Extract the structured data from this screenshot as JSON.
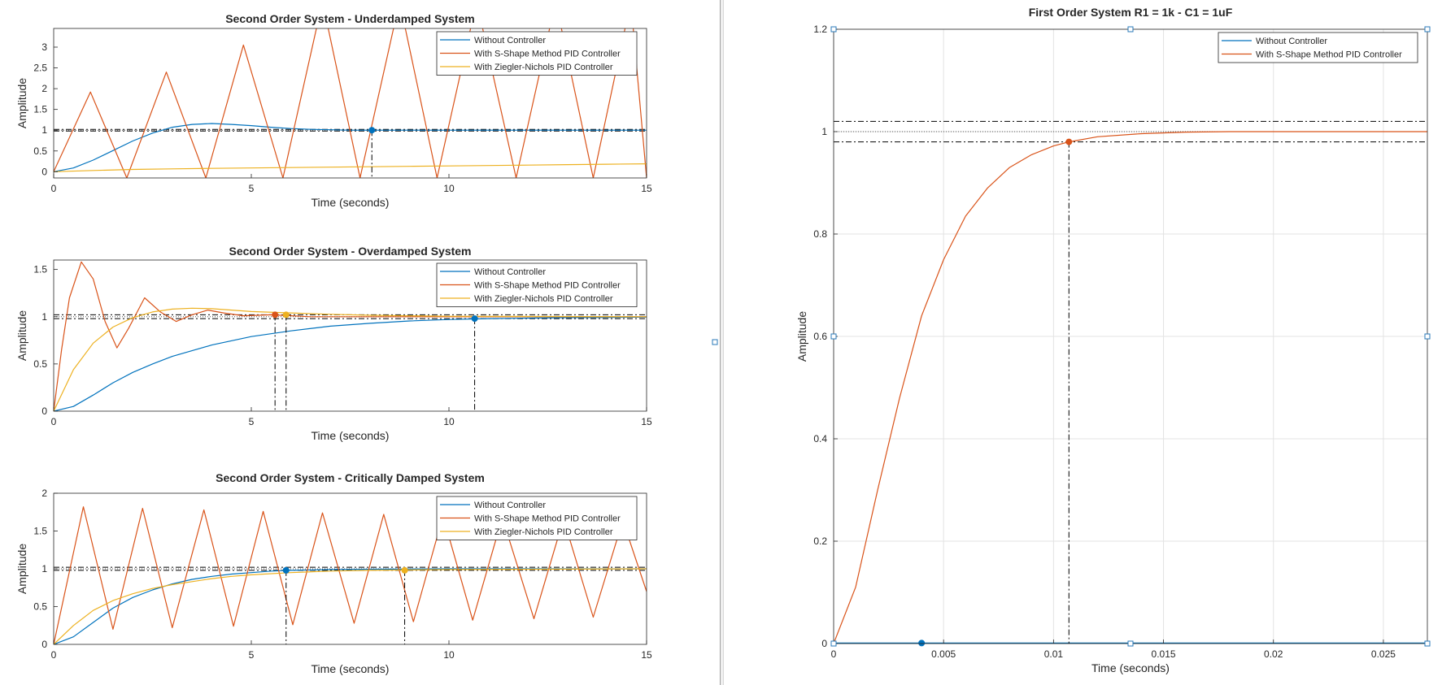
{
  "colors": {
    "without": "#0072BD",
    "s_shape": "#D95319",
    "zn": "#EDB120",
    "grid": "#e3e3e3",
    "axis": "#262626",
    "ref": "#000000",
    "handle": "#2a7ab8"
  },
  "chart_data": [
    {
      "id": "under",
      "type": "line",
      "title": "Second Order System - Underdamped System",
      "xlabel": "Time (seconds)",
      "ylabel": "Amplitude",
      "xlim": [
        0,
        15
      ],
      "ylim": [
        -0.15,
        3.45
      ],
      "xticks": [
        0,
        5,
        10,
        15
      ],
      "yticks": [
        0,
        0.5,
        1,
        1.5,
        2,
        2.5,
        3
      ],
      "ytick_labels": [
        "0",
        "0.5",
        "1",
        "1.5",
        "2",
        "2.5",
        "3"
      ],
      "grid": false,
      "legend_position": "top-right",
      "legend": [
        "Without Controller",
        "With S-Shape Method PID Controller",
        "With Ziegler-Nichols PID Controller"
      ],
      "series": [
        {
          "name": "Without Controller",
          "color_key": "without",
          "x": [
            0,
            0.5,
            1,
            1.5,
            2,
            2.5,
            3,
            3.5,
            4,
            4.5,
            5,
            5.5,
            6,
            6.5,
            7,
            7.5,
            8,
            9,
            10,
            12,
            15
          ],
          "y": [
            0,
            0.09,
            0.28,
            0.51,
            0.74,
            0.93,
            1.07,
            1.14,
            1.16,
            1.14,
            1.11,
            1.07,
            1.04,
            1.02,
            1.01,
            1.0,
            1.0,
            1.0,
            1.0,
            1.0,
            1.0
          ]
        },
        {
          "name": "With S-Shape Method PID Controller",
          "color_key": "s_shape",
          "x": [
            0,
            0.93,
            1.85,
            2.85,
            3.85,
            4.8,
            5.8,
            6.8,
            7.75,
            8.75,
            9.7,
            10.7,
            11.7,
            12.7,
            13.65,
            14.6,
            15
          ],
          "y": [
            0,
            1.92,
            -0.15,
            2.4,
            -0.15,
            3.05,
            -0.15,
            4.1,
            -0.15,
            4.1,
            -0.15,
            4.1,
            -0.15,
            4.1,
            -0.15,
            4.1,
            -0.15
          ]
        },
        {
          "name": "With Ziegler-Nichols PID Controller",
          "color_key": "zn",
          "x": [
            0,
            1,
            2,
            3,
            4,
            5,
            6,
            7,
            8,
            9,
            10,
            11,
            12,
            13,
            14,
            15
          ],
          "y": [
            0,
            0.03,
            0.055,
            0.07,
            0.08,
            0.09,
            0.1,
            0.11,
            0.12,
            0.13,
            0.14,
            0.15,
            0.16,
            0.17,
            0.18,
            0.19
          ]
        }
      ],
      "ref_lines": [
        1.02,
        0.98
      ],
      "ref_dotted": [
        1.0
      ],
      "markers": [
        {
          "x": 8.05,
          "y": 1.0,
          "color_key": "without"
        }
      ]
    },
    {
      "id": "over",
      "type": "line",
      "title": "Second Order System - Overdamped System",
      "xlabel": "Time (seconds)",
      "ylabel": "Amplitude",
      "xlim": [
        0,
        15
      ],
      "ylim": [
        0,
        1.6
      ],
      "xticks": [
        0,
        5,
        10,
        15
      ],
      "yticks": [
        0,
        0.5,
        1,
        1.5
      ],
      "ytick_labels": [
        "0",
        "0.5",
        "1",
        "1.5"
      ],
      "grid": false,
      "legend_position": "top-right",
      "legend": [
        "Without Controller",
        "With S-Shape Method PID Controller",
        "With Ziegler-Nichols PID Controller"
      ],
      "series": [
        {
          "name": "Without Controller",
          "color_key": "without",
          "x": [
            0,
            0.5,
            1,
            1.5,
            2,
            2.5,
            3,
            3.5,
            4,
            5,
            6,
            7,
            8,
            9,
            10,
            11,
            12,
            13,
            14,
            15
          ],
          "y": [
            0,
            0.05,
            0.17,
            0.3,
            0.41,
            0.5,
            0.58,
            0.64,
            0.7,
            0.79,
            0.85,
            0.9,
            0.93,
            0.955,
            0.97,
            0.98,
            0.985,
            0.99,
            0.993,
            0.995
          ]
        },
        {
          "name": "With S-Shape Method PID Controller",
          "color_key": "s_shape",
          "x": [
            0,
            0.2,
            0.4,
            0.7,
            1.0,
            1.3,
            1.6,
            1.9,
            2.3,
            2.7,
            3.1,
            3.5,
            3.9,
            4.3,
            4.8,
            5.5,
            6.5,
            8,
            10,
            15
          ],
          "y": [
            0,
            0.65,
            1.2,
            1.58,
            1.4,
            0.95,
            0.67,
            0.88,
            1.2,
            1.05,
            0.95,
            1.02,
            1.07,
            1.04,
            1.01,
            1.02,
            1.0,
            1.0,
            1.0,
            1.0
          ]
        },
        {
          "name": "With Ziegler-Nichols PID Controller",
          "color_key": "zn",
          "x": [
            0,
            0.5,
            1,
            1.5,
            2,
            2.5,
            3,
            3.5,
            4,
            4.5,
            5,
            6,
            7,
            8,
            10,
            15
          ],
          "y": [
            0,
            0.44,
            0.72,
            0.89,
            0.99,
            1.05,
            1.08,
            1.09,
            1.085,
            1.07,
            1.055,
            1.04,
            1.025,
            1.015,
            1.005,
            1.0
          ]
        }
      ],
      "ref_lines": [
        1.02,
        0.98
      ],
      "ref_dotted": [
        1.0
      ],
      "markers": [
        {
          "x": 5.6,
          "y": 1.02,
          "color_key": "s_shape"
        },
        {
          "x": 5.88,
          "y": 1.02,
          "color_key": "zn"
        },
        {
          "x": 10.65,
          "y": 0.98,
          "color_key": "without"
        }
      ]
    },
    {
      "id": "crit",
      "type": "line",
      "title": "Second Order System - Critically Damped System",
      "xlabel": "Time (seconds)",
      "ylabel": "Amplitude",
      "xlim": [
        0,
        15
      ],
      "ylim": [
        0,
        2
      ],
      "xticks": [
        0,
        5,
        10,
        15
      ],
      "yticks": [
        0,
        0.5,
        1,
        1.5,
        2
      ],
      "ytick_labels": [
        "0",
        "0.5",
        "1",
        "1.5",
        "2"
      ],
      "grid": false,
      "legend_position": "top-right",
      "legend": [
        "Without Controller",
        "With S-Shape Method PID Controller",
        "With Ziegler-Nichols PID Controller"
      ],
      "series": [
        {
          "name": "Without Controller",
          "color_key": "without",
          "x": [
            0,
            0.5,
            1,
            1.5,
            2,
            2.5,
            3,
            3.5,
            4,
            4.5,
            5,
            5.5,
            6,
            7,
            8,
            10,
            15
          ],
          "y": [
            0,
            0.1,
            0.29,
            0.48,
            0.62,
            0.72,
            0.8,
            0.86,
            0.9,
            0.93,
            0.95,
            0.97,
            0.98,
            0.99,
            0.995,
            1.0,
            1.0
          ]
        },
        {
          "name": "With S-Shape Method PID Controller",
          "color_key": "s_shape",
          "x": [
            0,
            0.75,
            1.5,
            2.25,
            3.0,
            3.8,
            4.55,
            5.3,
            6.05,
            6.8,
            7.6,
            8.35,
            9.1,
            9.85,
            10.6,
            11.35,
            12.15,
            12.9,
            13.65,
            14.4,
            15
          ],
          "y": [
            0,
            1.82,
            0.2,
            1.8,
            0.22,
            1.78,
            0.24,
            1.76,
            0.26,
            1.74,
            0.28,
            1.72,
            0.3,
            1.7,
            0.32,
            1.68,
            0.34,
            1.66,
            0.36,
            1.64,
            0.7
          ]
        },
        {
          "name": "With Ziegler-Nichols PID Controller",
          "color_key": "zn",
          "x": [
            0,
            0.5,
            1,
            1.5,
            2,
            2.5,
            3,
            3.5,
            4,
            4.5,
            5,
            6,
            7,
            8,
            9,
            10,
            15
          ],
          "y": [
            0,
            0.25,
            0.45,
            0.58,
            0.67,
            0.74,
            0.79,
            0.83,
            0.87,
            0.9,
            0.92,
            0.95,
            0.97,
            0.98,
            0.985,
            0.99,
            1.0
          ]
        }
      ],
      "ref_lines": [
        1.02,
        0.98
      ],
      "ref_dotted": [
        1.0
      ],
      "markers": [
        {
          "x": 5.88,
          "y": 0.98,
          "color_key": "without"
        },
        {
          "x": 8.88,
          "y": 0.98,
          "color_key": "zn"
        }
      ]
    },
    {
      "id": "first",
      "type": "line",
      "title": "First Order System R1 = 1k - C1 = 1uF",
      "xlabel": "Time (seconds)",
      "ylabel": "Amplitude",
      "xlim": [
        0,
        0.027
      ],
      "ylim": [
        0,
        1.2
      ],
      "xticks": [
        0,
        0.005,
        0.01,
        0.015,
        0.02,
        0.025
      ],
      "xtick_labels": [
        "0",
        "0.005",
        "0.01",
        "0.015",
        "0.02",
        "0.025"
      ],
      "yticks": [
        0,
        0.2,
        0.4,
        0.6,
        0.8,
        1,
        1.2
      ],
      "ytick_labels": [
        "0",
        "0.2",
        "0.4",
        "0.6",
        "0.8",
        "1",
        "1.2"
      ],
      "grid": true,
      "legend_position": "top-right",
      "legend": [
        "Without Controller",
        "With S-Shape Method PID Controller"
      ],
      "series": [
        {
          "name": "Without Controller",
          "color_key": "without",
          "x": [
            0,
            0.027
          ],
          "y": [
            0.001,
            0.001
          ]
        },
        {
          "name": "With S-Shape Method PID Controller",
          "color_key": "s_shape",
          "x": [
            0,
            0.001,
            0.002,
            0.003,
            0.004,
            0.005,
            0.006,
            0.007,
            0.008,
            0.009,
            0.01,
            0.0107,
            0.012,
            0.014,
            0.016,
            0.018,
            0.02,
            0.027
          ],
          "y": [
            0,
            0.11,
            0.3,
            0.48,
            0.64,
            0.75,
            0.835,
            0.89,
            0.93,
            0.955,
            0.972,
            0.98,
            0.99,
            0.996,
            0.999,
            1.0,
            1.0,
            1.0
          ]
        }
      ],
      "ref_lines": [
        1.02,
        0.98
      ],
      "ref_dotted": [
        1.0
      ],
      "markers": [
        {
          "x": 0.0107,
          "y": 0.98,
          "color_key": "s_shape"
        },
        {
          "x": 0.004,
          "y": 0.001,
          "color_key": "without"
        }
      ]
    }
  ]
}
